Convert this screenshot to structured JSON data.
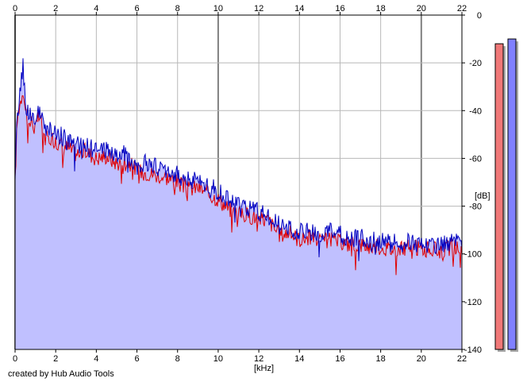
{
  "credit_text": "created by Hub Audio Tools",
  "chart_data": {
    "type": "area",
    "xlabel": "[kHz]",
    "ylabel": "[dB]",
    "xlim": [
      0,
      22
    ],
    "ylim": [
      -140,
      0
    ],
    "x_ticks": [
      0,
      2,
      4,
      6,
      8,
      10,
      12,
      14,
      16,
      18,
      20,
      22
    ],
    "y_ticks": [
      0,
      -20,
      -40,
      -60,
      -80,
      -100,
      -120,
      -140
    ],
    "grid": true,
    "series": [
      {
        "color": "#e00000",
        "x": [
          0.0,
          0.1,
          0.2,
          0.3,
          0.4,
          0.5,
          0.6,
          0.7,
          0.8,
          1,
          1.2,
          1.5,
          1.8,
          2,
          2.5,
          3,
          3.5,
          4,
          4.5,
          5,
          5.5,
          6,
          6.5,
          7,
          7.5,
          8,
          8.5,
          9,
          9.5,
          10,
          10.5,
          11,
          11.5,
          12,
          12.5,
          13,
          13.5,
          14,
          14.5,
          15,
          15.5,
          16,
          16.5,
          17,
          17.5,
          18,
          18.5,
          19,
          19.5,
          20,
          20.5,
          21,
          21.5,
          22
        ],
        "values": [
          -70,
          -45,
          -38,
          -35,
          -30,
          -40,
          -42,
          -46,
          -44,
          -48,
          -42,
          -52,
          -51,
          -53,
          -55,
          -58,
          -57,
          -60,
          -59,
          -62,
          -61,
          -65,
          -66,
          -67,
          -68,
          -70,
          -73,
          -72,
          -75,
          -77,
          -81,
          -83,
          -84,
          -85,
          -86,
          -92,
          -91,
          -94,
          -93,
          -95,
          -94,
          -95,
          -96,
          -96,
          -97,
          -97,
          -98,
          -98,
          -97,
          -98,
          -98,
          -99,
          -97,
          -98
        ]
      },
      {
        "color": "#0000c0",
        "x": [
          0.0,
          0.1,
          0.2,
          0.3,
          0.4,
          0.5,
          0.6,
          0.7,
          0.8,
          1,
          1.2,
          1.5,
          1.8,
          2,
          2.5,
          3,
          3.5,
          4,
          4.5,
          5,
          5.5,
          6,
          6.5,
          7,
          7.5,
          8,
          8.5,
          9,
          9.5,
          10,
          10.5,
          11,
          11.5,
          12,
          12.5,
          13,
          13.5,
          14,
          14.5,
          15,
          15.5,
          16,
          16.5,
          17,
          17.5,
          18,
          18.5,
          19,
          19.5,
          20,
          20.5,
          21,
          21.5,
          22
        ],
        "values": [
          -72,
          -42,
          -36,
          -28,
          -21,
          -36,
          -40,
          -43,
          -40,
          -46,
          -40,
          -49,
          -48,
          -49,
          -52,
          -54,
          -55,
          -57,
          -56,
          -59,
          -58,
          -63,
          -62,
          -64,
          -65,
          -67,
          -69,
          -69,
          -71,
          -74,
          -77,
          -80,
          -81,
          -82,
          -84,
          -88,
          -90,
          -91,
          -91,
          -92,
          -91,
          -92,
          -94,
          -93,
          -94,
          -95,
          -95,
          -96,
          -95,
          -96,
          -96,
          -96,
          -95,
          -96
        ]
      }
    ],
    "level_meters": [
      {
        "color": "#f07878",
        "level_db": -12
      },
      {
        "color": "#8080ff",
        "level_db": -10
      }
    ]
  }
}
